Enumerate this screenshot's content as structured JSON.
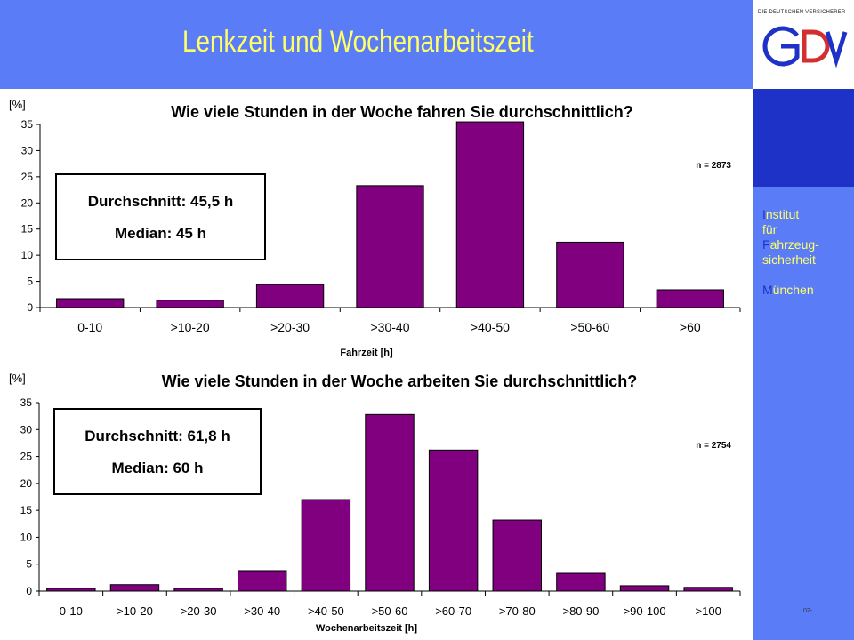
{
  "slide": {
    "title": "Lenkzeit und Wochenarbeitszeit",
    "logo_tagline": "DIE DEUTSCHEN VERSICHERER",
    "logo_text": "GDV",
    "institute": [
      {
        "initial": "I",
        "rest": "nstitut"
      },
      {
        "initial": "",
        "rest": "für"
      },
      {
        "initial": "F",
        "rest": "ahrzeug-"
      },
      {
        "initial": "",
        "rest": "sicherheit"
      },
      {
        "initial": "",
        "rest": ""
      },
      {
        "initial": "M",
        "rest": "ünchen"
      }
    ],
    "slide_number": "02-",
    "colors": {
      "header": "#5b7cf7",
      "sidebar_dark": "#1f32c8",
      "title": "#ffff66",
      "bar": "#800080",
      "logo": "#1f32c8",
      "logo_accent": "#d32f2f"
    }
  },
  "chart_data": [
    {
      "type": "bar",
      "title": "Wie viele Stunden in der Woche fahren Sie durchschnittlich?",
      "ylabel": "[%]",
      "xlabel": "Fahrzeit [h]",
      "note": "n = 2873",
      "stats": [
        "Durchschnitt: 45,5 h",
        "Median:  45 h"
      ],
      "categories": [
        "0-10",
        ">10-20",
        ">20-30",
        ">30-40",
        ">40-50",
        ">50-60",
        ">60"
      ],
      "values": [
        1.7,
        1.4,
        4.4,
        23.3,
        35.5,
        12.5,
        3.4
      ],
      "ylim": [
        0,
        35
      ],
      "yticks": [
        0,
        5,
        10,
        15,
        20,
        25,
        30,
        35
      ],
      "grid": false
    },
    {
      "type": "bar",
      "title": "Wie viele Stunden in der Woche arbeiten Sie durchschnittlich?",
      "ylabel": "[%]",
      "xlabel": "Wochenarbeitszeit [h]",
      "note": "n = 2754",
      "stats": [
        "Durchschnitt: 61,8 h",
        "Median:  60 h"
      ],
      "categories": [
        "0-10",
        ">10-20",
        ">20-30",
        ">30-40",
        ">40-50",
        ">50-60",
        ">60-70",
        ">70-80",
        ">80-90",
        ">90-100",
        ">100"
      ],
      "values": [
        0.5,
        1.2,
        0.5,
        3.8,
        17.0,
        32.8,
        26.2,
        13.2,
        3.3,
        1.0,
        0.7
      ],
      "ylim": [
        0,
        35
      ],
      "yticks": [
        0,
        5,
        10,
        15,
        20,
        25,
        30,
        35
      ],
      "grid": false
    }
  ]
}
